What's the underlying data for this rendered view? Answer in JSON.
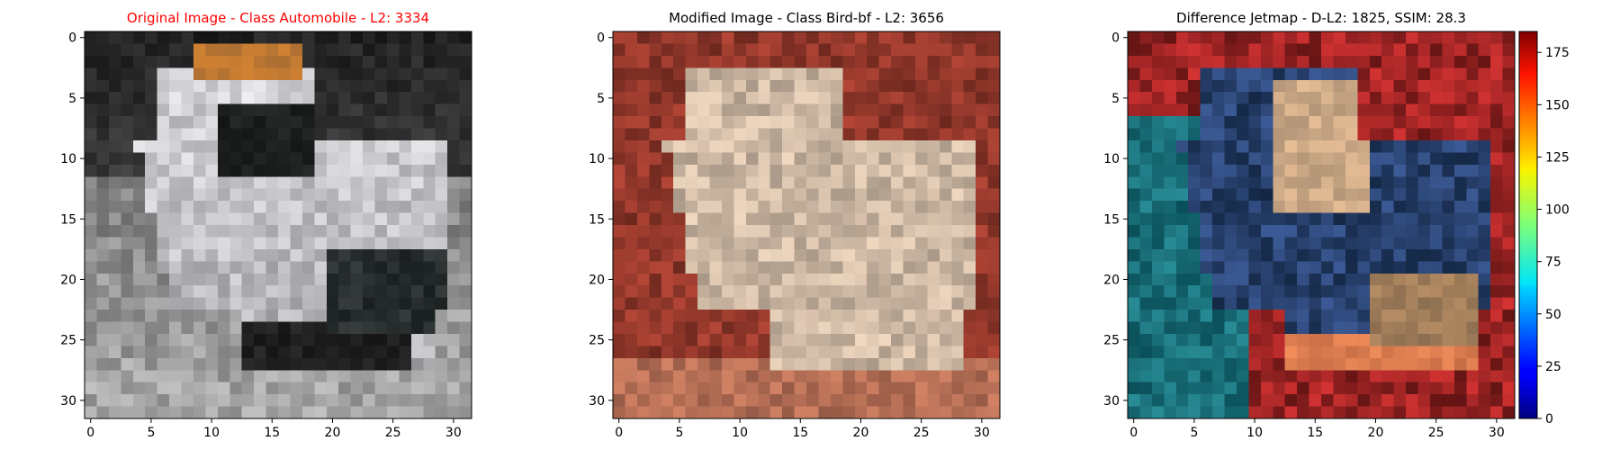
{
  "figure": {
    "title_color_highlight": "#ff0000",
    "title_color_default": "#000000"
  },
  "chart_data": [
    {
      "type": "heatmap",
      "title": "Original Image - Class Automobile - L2: 3334",
      "title_color": "#ff0000",
      "xticks": [
        0,
        5,
        10,
        15,
        20,
        25,
        30
      ],
      "yticks": [
        0,
        5,
        10,
        15,
        20,
        25,
        30
      ],
      "xlim": [
        -0.5,
        31.5
      ],
      "ylim": [
        31.5,
        -0.5
      ],
      "grid": false,
      "content": "32x32 pixel image: grey car on dark background"
    },
    {
      "type": "heatmap",
      "title": "Modified Image - Class Bird-bf - L2: 3656",
      "title_color": "#000000",
      "xticks": [
        0,
        5,
        10,
        15,
        20,
        25,
        30
      ],
      "yticks": [
        0,
        5,
        10,
        15,
        20,
        25,
        30
      ],
      "xlim": [
        -0.5,
        31.5
      ],
      "ylim": [
        31.5,
        -0.5
      ],
      "grid": false,
      "content": "32x32 pixel image: beige object on reddish background"
    },
    {
      "type": "heatmap",
      "title": "Difference Jetmap - D-L2: 1825, SSIM: 28.3",
      "title_color": "#000000",
      "xticks": [
        0,
        5,
        10,
        15,
        20,
        25,
        30
      ],
      "yticks": [
        0,
        5,
        10,
        15,
        20,
        25,
        30
      ],
      "xlim": [
        -0.5,
        31.5
      ],
      "ylim": [
        31.5,
        -0.5
      ],
      "grid": false,
      "colorbar": {
        "colormap": "jet",
        "range": [
          0,
          185
        ],
        "ticks": [
          0,
          25,
          50,
          75,
          100,
          125,
          150,
          175
        ]
      }
    }
  ]
}
